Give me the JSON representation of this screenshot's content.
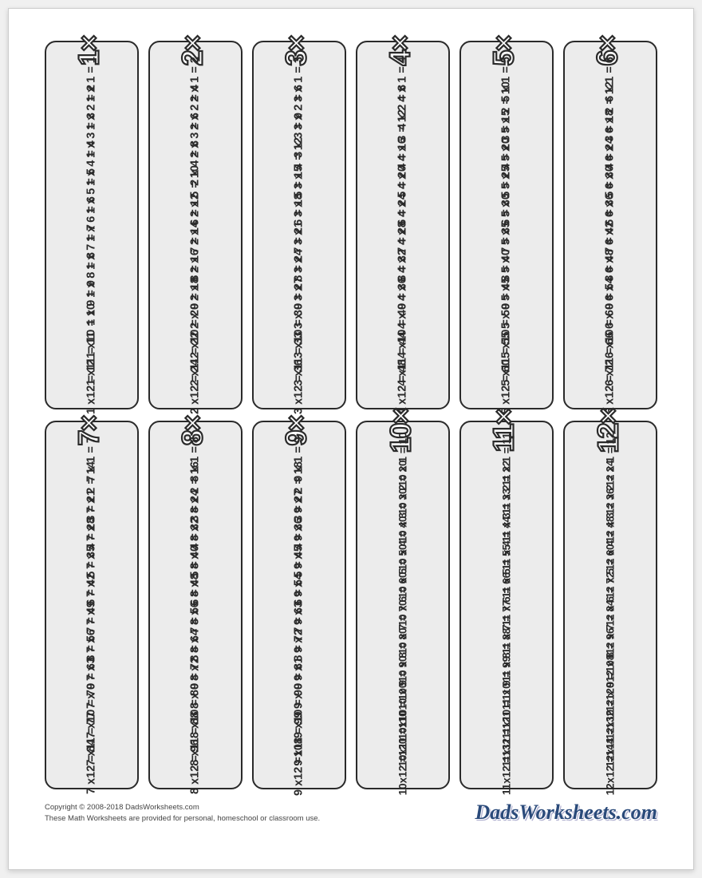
{
  "page": {
    "background_color": "#ffffff",
    "card_background": "#ececec",
    "card_border_color": "#2a2a2a",
    "card_border_radius": 14,
    "text_color": "#2a2a2a",
    "header_outline_color": "#2a2a2a",
    "header_fill_color": "#ffffff",
    "header_fontsize": 36,
    "equation_fontsize": 14.5
  },
  "tables": [
    {
      "n": 1,
      "header": "1×",
      "rows": [
        "1 x 1 = 1",
        "1 x 2 = 2",
        "1 x 3 = 3",
        "1 x 4 = 4",
        "1 x 5 = 5",
        "1 x 6 = 6",
        "1 x 7 = 7",
        "1 x 8 = 8",
        "1 x 9 = 9",
        "1 x10 = 10",
        "1 x11 = 11",
        "1 x12 = 12"
      ]
    },
    {
      "n": 2,
      "header": "2×",
      "rows": [
        "2 x 1 = 2",
        "2 x 2 = 4",
        "2 x 3 = 6",
        "2 x 4 = 8",
        "2 x 5 = 10",
        "2 x 6 = 12",
        "2 x 7 = 14",
        "2 x 8 = 16",
        "2 x 9 = 18",
        "2 x10 = 20",
        "2 x11 = 22",
        "2 x12 = 24"
      ]
    },
    {
      "n": 3,
      "header": "3×",
      "rows": [
        "3 x 1 = 3",
        "3 x 2 = 6",
        "3 x 3 = 9",
        "3 x 4 = 12",
        "3 x 5 = 15",
        "3 x 6 = 18",
        "3 x 7 = 21",
        "3 x 8 = 24",
        "3 x 9 = 27",
        "3 x10 = 30",
        "3 x11 = 33",
        "3 x12 = 36"
      ]
    },
    {
      "n": 4,
      "header": "4×",
      "rows": [
        "4 x 1 = 4",
        "4 x 2 = 8",
        "4 x 3 = 12",
        "4 x 4 = 16",
        "4 x 5 = 20",
        "4 x 6 = 24",
        "4 x 7 = 28",
        "4 x 8 = 32",
        "4 x 9 = 36",
        "4 x10 = 40",
        "4 x11 = 44",
        "4 x12 = 48"
      ]
    },
    {
      "n": 5,
      "header": "5×",
      "rows": [
        "5 x 1 = 5",
        "5 x 2 = 10",
        "5 x 3 = 15",
        "5 x 4 = 20",
        "5 x 5 = 25",
        "5 x 6 = 30",
        "5 x 7 = 35",
        "5 x 8 = 40",
        "5 x 9 = 45",
        "5 x10 = 50",
        "5 x11 = 55",
        "5 x12 = 60"
      ]
    },
    {
      "n": 6,
      "header": "6×",
      "rows": [
        "6 x 1 = 6",
        "6 x 2 = 12",
        "6 x 3 = 18",
        "6 x 4 = 24",
        "6 x 5 = 30",
        "6 x 6 = 36",
        "6 x 7 = 42",
        "6 x 8 = 48",
        "6 x 9 = 54",
        "6 x10 = 60",
        "6 x11 = 66",
        "6 x12 = 72"
      ]
    },
    {
      "n": 7,
      "header": "7×",
      "rows": [
        "7 x 1 = 7",
        "7 x 2 = 14",
        "7 x 3 = 21",
        "7 x 4 = 28",
        "7 x 5 = 35",
        "7 x 6 = 42",
        "7 x 7 = 49",
        "7 x 8 = 56",
        "7 x 9 = 63",
        "7 x10 = 70",
        "7 x11 = 77",
        "7 x12 = 84"
      ]
    },
    {
      "n": 8,
      "header": "8×",
      "rows": [
        "8 x 1 = 8",
        "8 x 2 = 16",
        "8 x 3 = 24",
        "8 x 4 = 32",
        "8 x 5 = 40",
        "8 x 6 = 48",
        "8 x 7 = 56",
        "8 x 8 = 64",
        "8 x 9 = 72",
        "8 x10 = 80",
        "8 x11 = 88",
        "8 x12 = 96"
      ]
    },
    {
      "n": 9,
      "header": "9×",
      "rows": [
        "9 x 1 = 9",
        "9 x 2 = 18",
        "9 x 3 = 27",
        "9 x 4 = 36",
        "9 x 5 = 45",
        "9 x 6 = 54",
        "9 x 7 = 63",
        "9 x 8 = 72",
        "9 x 9 = 81",
        "9 x10 = 90",
        "9 x11 = 99",
        "9 x12 =108"
      ]
    },
    {
      "n": 10,
      "header": "10×",
      "rows": [
        "10 x 1 = 10",
        "10 x 2 = 20",
        "10 x 3 = 30",
        "10 x 4 = 40",
        "10 x 5 = 50",
        "10 x 6 = 60",
        "10 x 7 = 70",
        "10 x 8 = 80",
        "10 x 9 = 90",
        "10x10 =100",
        "10x11 =110",
        "10x12 =120"
      ]
    },
    {
      "n": 11,
      "header": "11×",
      "rows": [
        "11 x 1 = 11",
        "11 x 2 = 22",
        "11 x 3 = 33",
        "11 x 4 = 44",
        "11 x 5 = 55",
        "11 x 6 = 66",
        "11 x 7 = 77",
        "11 x 8 = 88",
        "11 x 9 = 99",
        "11x10 =110",
        "11x11 =121",
        "11x12 =132"
      ]
    },
    {
      "n": 12,
      "header": "12×",
      "rows": [
        "12 x 1 = 12",
        "12 x 2 = 24",
        "12 x 3 = 36",
        "12 x 4 = 48",
        "12 x 5 = 60",
        "12 x 6 = 72",
        "12 x 7 = 84",
        "12 x 8 = 96",
        "12 x 9 =108",
        "12x10 =120",
        "12x11 =132",
        "12x12 =144"
      ]
    }
  ],
  "footer": {
    "copyright": "Copyright © 2008-2018 DadsWorksheets.com",
    "notice": "These Math Worksheets are provided for personal, homeschool or classroom use.",
    "logo_text": "DadsWorksheets.com"
  }
}
